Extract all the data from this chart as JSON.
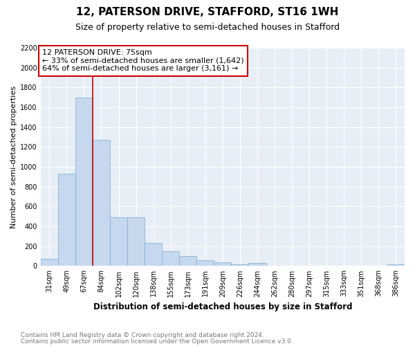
{
  "title": "12, PATERSON DRIVE, STAFFORD, ST16 1WH",
  "subtitle": "Size of property relative to semi-detached houses in Stafford",
  "xlabel": "Distribution of semi-detached houses by size in Stafford",
  "ylabel": "Number of semi-detached properties",
  "footnote1": "Contains HM Land Registry data © Crown copyright and database right 2024.",
  "footnote2": "Contains public sector information licensed under the Open Government Licence v3.0.",
  "annotation_line1": "12 PATERSON DRIVE: 75sqm",
  "annotation_line2": "← 33% of semi-detached houses are smaller (1,642)",
  "annotation_line3": "64% of semi-detached houses are larger (3,161) →",
  "bar_color": "#c5d8ee",
  "bar_edge_color": "#7aaad0",
  "categories": [
    "31sqm",
    "49sqm",
    "67sqm",
    "84sqm",
    "102sqm",
    "120sqm",
    "138sqm",
    "155sqm",
    "173sqm",
    "191sqm",
    "209sqm",
    "226sqm",
    "244sqm",
    "262sqm",
    "280sqm",
    "297sqm",
    "315sqm",
    "333sqm",
    "351sqm",
    "368sqm",
    "386sqm"
  ],
  "values": [
    75,
    930,
    1700,
    1270,
    490,
    490,
    230,
    150,
    100,
    60,
    35,
    20,
    30,
    0,
    0,
    0,
    0,
    0,
    0,
    0,
    20
  ],
  "red_line_color": "#cc0000",
  "red_line_x": 2.5,
  "ylim": [
    0,
    2200
  ],
  "yticks": [
    0,
    200,
    400,
    600,
    800,
    1000,
    1200,
    1400,
    1600,
    1800,
    2000,
    2200
  ],
  "annotation_box_edge_color": "#cc0000",
  "plot_bg_color": "#e8eef6",
  "grid_color": "#ffffff",
  "title_fontsize": 11,
  "subtitle_fontsize": 9,
  "axis_label_fontsize": 8,
  "tick_fontsize": 7,
  "annotation_fontsize": 8,
  "footnote_fontsize": 6.5
}
